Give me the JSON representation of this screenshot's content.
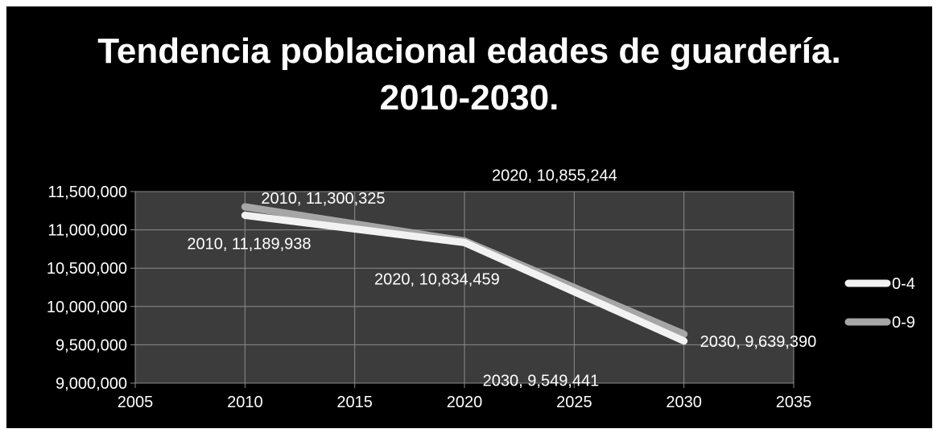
{
  "chart_data": {
    "type": "line",
    "title": "Tendencia poblacional edades de guardería. 2010-2030.",
    "title_lines": [
      "Tendencia poblacional edades de guardería.",
      "2010-2030."
    ],
    "xlabel": "",
    "ylabel": "",
    "xlim": [
      2005,
      2035
    ],
    "ylim": [
      9000000,
      11500000
    ],
    "x_ticks": [
      2005,
      2010,
      2015,
      2020,
      2025,
      2030,
      2035
    ],
    "x_tick_labels": [
      "2005",
      "2010",
      "2015",
      "2020",
      "2025",
      "2030",
      "2035"
    ],
    "y_ticks": [
      9000000,
      9500000,
      10000000,
      10500000,
      11000000,
      11500000
    ],
    "y_tick_labels": [
      "9,000,000",
      "9,500,000",
      "10,000,000",
      "10,500,000",
      "11,000,000",
      "11,500,000"
    ],
    "grid": true,
    "legend_position": "right",
    "plot_background": "#3c3c3c",
    "figure_background": "#000000",
    "grid_color": "#8c8c8c",
    "series": [
      {
        "name": "0-4",
        "color": "#f2f2f2",
        "x": [
          2010,
          2020,
          2030
        ],
        "values": [
          11189938,
          10834459,
          9549441
        ],
        "labels": [
          "2010, 11,189,938",
          "2020, 10,834,459",
          "2030, 9,549,441"
        ]
      },
      {
        "name": "0-9",
        "color": "#a6a6a6",
        "x": [
          2010,
          2020,
          2030
        ],
        "values": [
          11300325,
          10855244,
          9639390
        ],
        "labels": [
          "2010, 11,300,325",
          "2020, 10,855,244",
          "2030, 9,639,390"
        ]
      }
    ]
  }
}
